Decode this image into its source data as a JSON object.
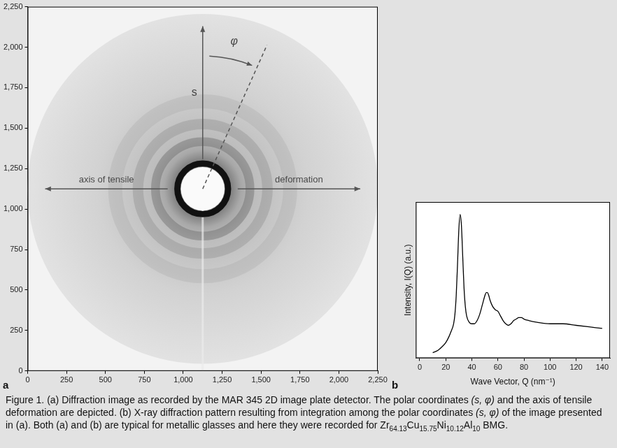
{
  "chart_data": [
    {
      "type": "image",
      "panel": "a",
      "xlim": [
        0,
        2250
      ],
      "ylim": [
        0,
        2250
      ],
      "xticks": [
        0,
        250,
        500,
        750,
        {
          "value": 1000,
          "label": "1,000"
        },
        {
          "value": 1250,
          "label": "1,250"
        },
        {
          "value": 1500,
          "label": "1,500"
        },
        {
          "value": 1750,
          "label": "1,750"
        },
        {
          "value": 2000,
          "label": "2,000"
        },
        {
          "value": 2250,
          "label": "2,250"
        }
      ],
      "yticks": [
        0,
        250,
        500,
        750,
        {
          "value": 1000,
          "label": "1,000"
        },
        {
          "value": 1250,
          "label": "1,250"
        },
        {
          "value": 1500,
          "label": "1,500"
        },
        {
          "value": 1750,
          "label": "1,750"
        },
        {
          "value": 2000,
          "label": "2,000"
        },
        {
          "value": 2250,
          "label": "2,250"
        }
      ],
      "grid": false,
      "annotations": {
        "radial": "s",
        "azimuth": "φ",
        "axis_left": "axis of tensile",
        "axis_right": "deformation"
      }
    },
    {
      "type": "line",
      "panel": "b",
      "x": [
        10,
        14,
        18,
        20,
        22,
        24,
        26,
        27,
        28,
        29,
        30,
        31,
        32,
        33,
        34,
        35,
        36,
        38,
        40,
        42,
        44,
        46,
        48,
        50,
        51,
        52,
        53,
        54,
        56,
        58,
        60,
        62,
        64,
        66,
        68,
        70,
        72,
        74,
        76,
        78,
        80,
        84,
        90,
        100,
        110,
        120,
        130,
        140
      ],
      "values": [
        3.5,
        5,
        8,
        10,
        13,
        17,
        22,
        28,
        40,
        60,
        82,
        92,
        85,
        65,
        45,
        33,
        27,
        23,
        22,
        22,
        24,
        28,
        34,
        40,
        42,
        42,
        40,
        37,
        33,
        31,
        30,
        27,
        24,
        22,
        21,
        22,
        24,
        25,
        26,
        26,
        25,
        24,
        23,
        22,
        22,
        21,
        20,
        19
      ],
      "color": "#000000",
      "xlim": [
        -3,
        146
      ],
      "ylim": [
        0,
        100
      ],
      "xticks": [
        0,
        20,
        40,
        60,
        80,
        100,
        120,
        140
      ],
      "x_label": "Wave Vector, Q (nm⁻¹)",
      "y_label": "Intensity, I(Q) (a.u.)",
      "tick_labels": "x",
      "grid": false
    }
  ],
  "caption": [
    {
      "text": "Figure 1. (a) Diffraction image as recorded by the MAR 345 2D image plate detector. The polar coordinates "
    },
    {
      "text": "(s, φ)",
      "style": "italic"
    },
    {
      "text": " and the axis of tensile deformation are depicted. (b) X-ray diffraction pattern resulting from integration among the polar coordinates "
    },
    {
      "text": "(s, φ)",
      "style": "italic"
    },
    {
      "text": " of the image presented in (a). Both (a) and (b) are typical for metallic glasses and here they were recorded for Zr"
    },
    {
      "text": "64.13",
      "style": "sub"
    },
    {
      "text": "Cu"
    },
    {
      "text": "15.75",
      "style": "sub"
    },
    {
      "text": "Ni"
    },
    {
      "text": "10.12",
      "style": "sub"
    },
    {
      "text": "Al"
    },
    {
      "text": "10",
      "style": "sub"
    },
    {
      "text": " BMG."
    }
  ]
}
